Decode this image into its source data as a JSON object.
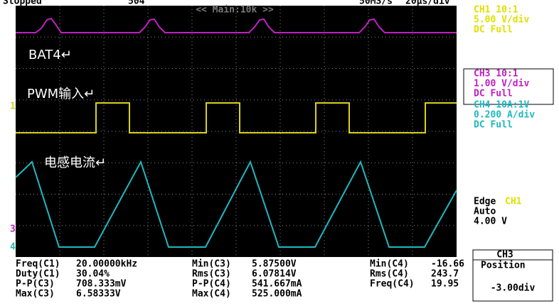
{
  "header": {
    "status": "Stopped",
    "count": "504",
    "zoom": "<< Main:10k >>",
    "rate": "50MS/s",
    "timebase": "20µs/div"
  },
  "annotations": [
    "BAT4↵",
    "PWM输入↵",
    "电感电流↵"
  ],
  "channels": [
    {
      "lines": [
        "CH1 10:1",
        "5.00 V/div",
        "DC   Full"
      ]
    },
    {
      "lines": [
        "CH3 10:1",
        "1.00 V/div",
        "DC   Full"
      ]
    },
    {
      "lines": [
        "CH4 10A:1V",
        "0.200 A/div",
        "DC   Full"
      ]
    }
  ],
  "trigger": {
    "mode": "Edge",
    "source": "CH1",
    "sweep": "Auto",
    "level": "4.00 V"
  },
  "measurements": [
    [
      "Freq(C1)",
      "20.00000kHz",
      "Min(C3)",
      "5.87500V",
      "Min(C4)",
      "-16.66"
    ],
    [
      "Duty(C1)",
      "30.04%",
      "Rms(C3)",
      "6.07814V",
      "Rms(C4)",
      "243.7"
    ],
    [
      "P-P(C3)",
      "708.333mV",
      "P-P(C4)",
      "541.667mA",
      "Freq(C4)",
      "19.95"
    ],
    [
      "Max(C3)",
      "6.58333V",
      "Max(C4)",
      "525.000mA"
    ]
  ],
  "position": {
    "channel": "CH3",
    "label": "Position",
    "value": "-3.00div"
  }
}
